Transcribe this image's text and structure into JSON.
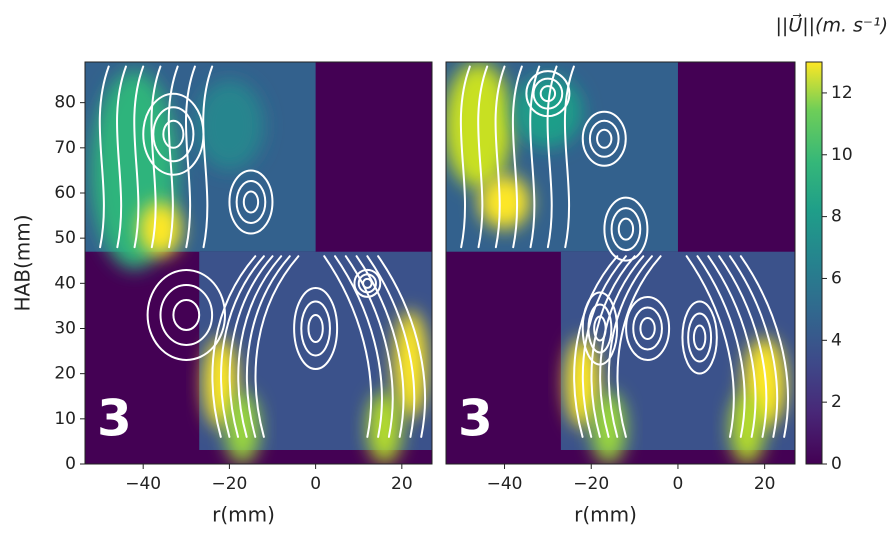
{
  "chart_data": [
    {
      "type": "streamplot",
      "xlabel": "r(mm)",
      "ylabel": "HAB(mm)",
      "annotation": "3",
      "xlim": [
        -53.5,
        27
      ],
      "ylim": [
        0,
        89
      ],
      "xticks": [
        {
          "value": -40,
          "label": "−40"
        },
        {
          "value": -20,
          "label": "−20"
        },
        0,
        20
      ],
      "yticks": [
        0,
        10,
        20,
        30,
        40,
        50,
        60,
        70,
        80
      ]
    },
    {
      "type": "streamplot",
      "xlabel": "r(mm)",
      "annotation": "3",
      "xlim": [
        -53.5,
        27
      ],
      "ylim": [
        0,
        89
      ],
      "xticks": [
        {
          "value": -40,
          "label": "−40"
        },
        {
          "value": -20,
          "label": "−20"
        },
        0,
        20
      ]
    }
  ],
  "colorbar": {
    "label": "||U⃗||(m. s⁻¹)",
    "lim": [
      0,
      13
    ],
    "ticks": [
      0,
      2,
      4,
      6,
      8,
      10,
      12
    ]
  }
}
